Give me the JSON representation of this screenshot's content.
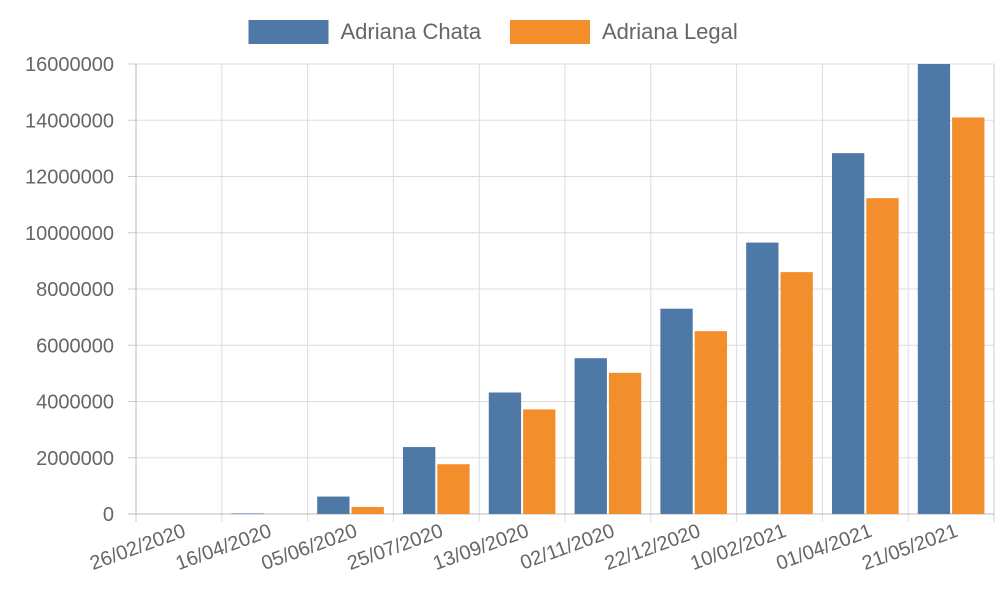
{
  "chart_data": {
    "type": "bar",
    "title": "",
    "xlabel": "",
    "ylabel": "",
    "categories": [
      "26/02/2020",
      "16/04/2020",
      "05/06/2020",
      "25/07/2020",
      "13/09/2020",
      "02/11/2020",
      "22/12/2020",
      "10/02/2021",
      "01/04/2021",
      "21/05/2021"
    ],
    "series": [
      {
        "name": "Adriana Chata",
        "color": "#4e79a7",
        "values": [
          0,
          20000,
          620000,
          2380000,
          4320000,
          5540000,
          7300000,
          9650000,
          12830000,
          16000000
        ]
      },
      {
        "name": "Adriana Legal",
        "color": "#f28e2b",
        "values": [
          0,
          5000,
          250000,
          1770000,
          3720000,
          5020000,
          6500000,
          8600000,
          11230000,
          14100000
        ]
      }
    ],
    "ylim": [
      0,
      16000000
    ],
    "yticks": [
      0,
      2000000,
      4000000,
      6000000,
      8000000,
      10000000,
      12000000,
      14000000,
      16000000
    ],
    "ytick_labels": [
      "0",
      "2000000",
      "4000000",
      "6000000",
      "8000000",
      "10000000",
      "12000000",
      "14000000",
      "16000000"
    ],
    "grid": true,
    "legend_position": "top-center"
  }
}
